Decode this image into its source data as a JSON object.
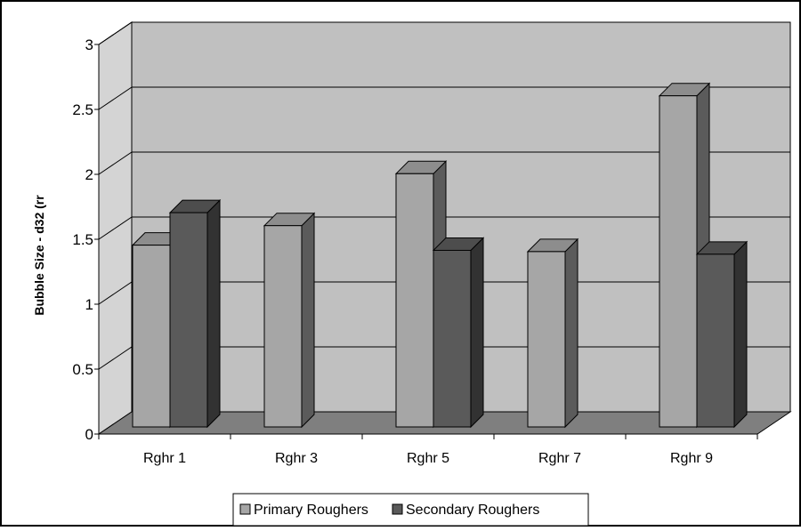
{
  "chart_data": {
    "type": "bar",
    "title": "",
    "xlabel": "",
    "ylabel": "Bubble Size - d32 (rr",
    "categories": [
      "Rghr 1",
      "Rghr 3",
      "Rghr 5",
      "Rghr 7",
      "Rghr 9"
    ],
    "series": [
      {
        "name": "Primary Roughers",
        "values": [
          1.4,
          1.55,
          1.95,
          1.35,
          2.55
        ]
      },
      {
        "name": "Secondary Roughers",
        "values": [
          1.65,
          null,
          1.36,
          null,
          1.33
        ]
      }
    ],
    "ylim": [
      0,
      3
    ],
    "yticks": [
      "0",
      "0.5",
      "1",
      "1.5",
      "2",
      "2.5",
      "3"
    ],
    "ytick_values": [
      0,
      0.5,
      1,
      1.5,
      2,
      2.5,
      3
    ],
    "grid": true,
    "legend_position": "bottom",
    "three_d": true,
    "colors": {
      "Primary Roughers": "#a6a6a6",
      "Secondary Roughers": "#5a5a5a",
      "wall": "#c0c0c0",
      "floor": "#7f7f7f"
    }
  }
}
